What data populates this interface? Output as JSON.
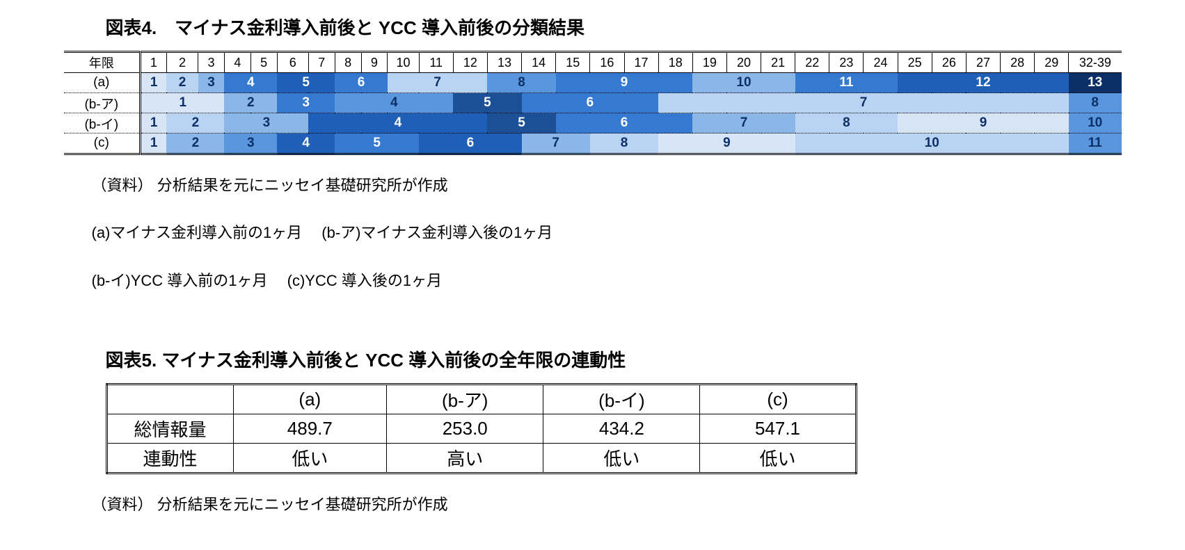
{
  "palette": {
    "shade": [
      "#d7e5f7",
      "#b9d4f3",
      "#8ab6e8",
      "#5a96de",
      "#3579d1",
      "#1f5fb8",
      "#1b4f96",
      "#0b2f66"
    ],
    "textLight": "#ffffff",
    "textDark": "#0b2f66"
  },
  "fig4": {
    "title": "図表4.　マイナス金利導入前後と YCC 導入前後の分類結果",
    "rowheadLabel": "年限",
    "columns": [
      "1",
      "2",
      "3",
      "4",
      "5",
      "6",
      "7",
      "8",
      "9",
      "10",
      "11",
      "12",
      "13",
      "14",
      "15",
      "16",
      "17",
      "18",
      "19",
      "20",
      "21",
      "22",
      "23",
      "24",
      "25",
      "26",
      "27",
      "28",
      "29",
      "32-39"
    ],
    "colWeights": [
      1,
      1.2,
      1,
      1,
      1,
      1.2,
      1,
      1,
      1,
      1.2,
      1.3,
      1.3,
      1.3,
      1.3,
      1.3,
      1.3,
      1.3,
      1.3,
      1.3,
      1.3,
      1.3,
      1.3,
      1.3,
      1.3,
      1.3,
      1.3,
      1.3,
      1.3,
      1.3,
      2
    ],
    "rows": [
      {
        "label": "(a)",
        "cells": [
          {
            "span": 1,
            "v": "1",
            "s": 0
          },
          {
            "span": 1,
            "v": "2",
            "s": 1
          },
          {
            "span": 1,
            "v": "3",
            "s": 2
          },
          {
            "span": 2,
            "v": "4",
            "s": 4
          },
          {
            "span": 2,
            "v": "5",
            "s": 5
          },
          {
            "span": 2,
            "v": "6",
            "s": 4
          },
          {
            "span": 3,
            "v": "7",
            "s": 1
          },
          {
            "span": 2,
            "v": "8",
            "s": 3
          },
          {
            "span": 4,
            "v": "9",
            "s": 4
          },
          {
            "span": 3,
            "v": "10",
            "s": 2
          },
          {
            "span": 3,
            "v": "11",
            "s": 4
          },
          {
            "span": 5,
            "v": "12",
            "s": 5
          },
          {
            "span": 1,
            "v": "13",
            "s": 7
          }
        ]
      },
      {
        "label": "(b-ア)",
        "cells": [
          {
            "span": 3,
            "v": "1",
            "s": 0
          },
          {
            "span": 2,
            "v": "2",
            "s": 2
          },
          {
            "span": 2,
            "v": "3",
            "s": 4
          },
          {
            "span": 4,
            "v": "4",
            "s": 3
          },
          {
            "span": 2,
            "v": "5",
            "s": 6
          },
          {
            "span": 4,
            "v": "6",
            "s": 4
          },
          {
            "span": 12,
            "v": "7",
            "s": 1
          },
          {
            "span": 1,
            "v": "8",
            "s": 3
          }
        ]
      },
      {
        "label": "(b-イ)",
        "cells": [
          {
            "span": 1,
            "v": "1",
            "s": 0
          },
          {
            "span": 2,
            "v": "2",
            "s": 1
          },
          {
            "span": 3,
            "v": "3",
            "s": 2
          },
          {
            "span": 6,
            "v": "4",
            "s": 5
          },
          {
            "span": 2,
            "v": "5",
            "s": 6
          },
          {
            "span": 4,
            "v": "6",
            "s": 4
          },
          {
            "span": 3,
            "v": "7",
            "s": 2
          },
          {
            "span": 3,
            "v": "8",
            "s": 1
          },
          {
            "span": 5,
            "v": "9",
            "s": 0
          },
          {
            "span": 1,
            "v": "10",
            "s": 3
          }
        ]
      },
      {
        "label": "(c)",
        "cells": [
          {
            "span": 1,
            "v": "1",
            "s": 0
          },
          {
            "span": 2,
            "v": "2",
            "s": 2
          },
          {
            "span": 2,
            "v": "3",
            "s": 3
          },
          {
            "span": 2,
            "v": "4",
            "s": 5
          },
          {
            "span": 3,
            "v": "5",
            "s": 4
          },
          {
            "span": 3,
            "v": "6",
            "s": 5
          },
          {
            "span": 2,
            "v": "7",
            "s": 2
          },
          {
            "span": 2,
            "v": "8",
            "s": 1
          },
          {
            "span": 4,
            "v": "9",
            "s": 0
          },
          {
            "span": 8,
            "v": "10",
            "s": 1
          },
          {
            "span": 1,
            "v": "11",
            "s": 3
          }
        ]
      }
    ],
    "notes": [
      "（資料）  分析結果を元にニッセイ基礎研究所が作成",
      "(a)マイナス金利導入前の1ヶ月　   (b-ア)マイナス金利導入後の1ヶ月",
      "(b-イ)YCC 導入前の1ヶ月　   (c)YCC 導入後の1ヶ月"
    ]
  },
  "fig5": {
    "title": "図表5.  マイナス金利導入前後と YCC 導入前後の全年限の連動性",
    "columns": [
      "(a)",
      "(b-ア)",
      "(b-イ)",
      "(c)"
    ],
    "rows": [
      {
        "label": "総情報量",
        "cells": [
          "489.7",
          "253.0",
          "434.2",
          "547.1"
        ]
      },
      {
        "label": "連動性",
        "cells": [
          "低い",
          "高い",
          "低い",
          "低い"
        ]
      }
    ],
    "note": "（資料）  分析結果を元にニッセイ基礎研究所が作成"
  }
}
